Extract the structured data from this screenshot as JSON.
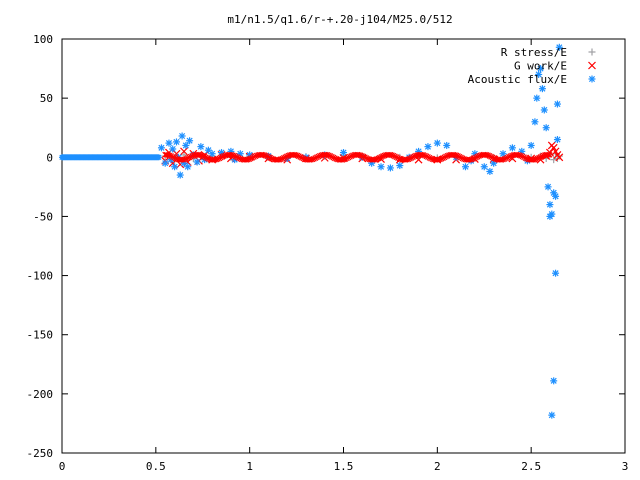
{
  "chart_data": {
    "type": "scatter",
    "title": "m1/n1.5/q1.6/r-+.20-j104/M25.0/512",
    "xlabel": "",
    "ylabel": "",
    "xlim": [
      0,
      3
    ],
    "ylim": [
      -250,
      100
    ],
    "xticks": [
      "0",
      "0.5",
      "1",
      "1.5",
      "2",
      "2.5",
      "3"
    ],
    "yticks": [
      "100",
      "50",
      "0",
      "-50",
      "-100",
      "-150",
      "-200",
      "-250"
    ],
    "legend_position": "top-right",
    "grid": false,
    "series": [
      {
        "name": "R stress/E",
        "marker": "plus",
        "color": "#a0a0a4",
        "points": [
          [
            0.55,
            1
          ],
          [
            0.6,
            -2
          ],
          [
            0.65,
            2
          ],
          [
            0.7,
            -1
          ],
          [
            0.8,
            1
          ],
          [
            0.9,
            0
          ],
          [
            1.0,
            0.5
          ],
          [
            1.1,
            0
          ],
          [
            1.2,
            -0.5
          ],
          [
            1.3,
            0.5
          ],
          [
            1.4,
            1
          ],
          [
            1.5,
            1.5
          ],
          [
            1.6,
            0.5
          ],
          [
            1.7,
            0
          ],
          [
            1.8,
            0
          ],
          [
            1.9,
            0.5
          ],
          [
            2.0,
            -0.5
          ],
          [
            2.1,
            0.5
          ],
          [
            2.2,
            0
          ],
          [
            2.3,
            -0.5
          ],
          [
            2.4,
            0.5
          ],
          [
            2.5,
            0
          ],
          [
            2.55,
            1
          ],
          [
            2.58,
            -1
          ],
          [
            2.6,
            2
          ],
          [
            2.62,
            -2
          ],
          [
            2.63,
            3
          ],
          [
            2.64,
            -1
          ],
          [
            2.65,
            1
          ]
        ]
      },
      {
        "name": "G work/E",
        "marker": "cross",
        "color": "#ff0000",
        "points": [
          [
            0.55,
            -3
          ],
          [
            0.57,
            4
          ],
          [
            0.59,
            -5
          ],
          [
            0.61,
            3
          ],
          [
            0.63,
            -6
          ],
          [
            0.65,
            5
          ],
          [
            0.67,
            -4
          ],
          [
            0.7,
            3
          ],
          [
            0.73,
            -3
          ],
          [
            0.76,
            2
          ],
          [
            0.8,
            -2
          ],
          [
            0.85,
            2
          ],
          [
            0.9,
            -1
          ],
          [
            1.0,
            0.5
          ],
          [
            1.1,
            -1
          ],
          [
            1.2,
            -2
          ],
          [
            1.3,
            -1
          ],
          [
            1.4,
            -0.5
          ],
          [
            1.5,
            -0.5
          ],
          [
            1.6,
            -1
          ],
          [
            1.7,
            -1.5
          ],
          [
            1.8,
            -2
          ],
          [
            1.9,
            -2
          ],
          [
            2.0,
            -2
          ],
          [
            2.1,
            -2
          ],
          [
            2.2,
            -1.5
          ],
          [
            2.3,
            -1.5
          ],
          [
            2.4,
            -1
          ],
          [
            2.5,
            -1
          ],
          [
            2.55,
            -2
          ],
          [
            2.58,
            1
          ],
          [
            2.6,
            4
          ],
          [
            2.61,
            10
          ],
          [
            2.62,
            8
          ],
          [
            2.63,
            5
          ],
          [
            2.64,
            2
          ],
          [
            2.65,
            0
          ]
        ]
      },
      {
        "name": "Acoustic flux/E",
        "marker": "star",
        "color": "#1e90ff",
        "points": [
          [
            0.53,
            8
          ],
          [
            0.55,
            -5
          ],
          [
            0.57,
            12
          ],
          [
            0.58,
            -2
          ],
          [
            0.59,
            7
          ],
          [
            0.6,
            -8
          ],
          [
            0.61,
            13
          ],
          [
            0.62,
            0
          ],
          [
            0.63,
            -15
          ],
          [
            0.64,
            18
          ],
          [
            0.65,
            -5
          ],
          [
            0.66,
            10
          ],
          [
            0.67,
            -8
          ],
          [
            0.68,
            14
          ],
          [
            0.7,
            2
          ],
          [
            0.72,
            -4
          ],
          [
            0.74,
            9
          ],
          [
            0.76,
            -2
          ],
          [
            0.78,
            6
          ],
          [
            0.8,
            3
          ],
          [
            0.85,
            4
          ],
          [
            0.9,
            5
          ],
          [
            0.92,
            -2
          ],
          [
            0.95,
            3
          ],
          [
            1.0,
            2
          ],
          [
            1.1,
            1
          ],
          [
            1.2,
            -1
          ],
          [
            1.3,
            0
          ],
          [
            1.4,
            2
          ],
          [
            1.5,
            4
          ],
          [
            1.6,
            0
          ],
          [
            1.65,
            -5
          ],
          [
            1.7,
            -8
          ],
          [
            1.75,
            -9
          ],
          [
            1.8,
            -7
          ],
          [
            1.85,
            0
          ],
          [
            1.9,
            5
          ],
          [
            1.95,
            9
          ],
          [
            2.0,
            12
          ],
          [
            2.05,
            10
          ],
          [
            2.1,
            0
          ],
          [
            2.15,
            -8
          ],
          [
            2.18,
            -3
          ],
          [
            2.2,
            3
          ],
          [
            2.25,
            -8
          ],
          [
            2.28,
            -12
          ],
          [
            2.3,
            -5
          ],
          [
            2.35,
            3
          ],
          [
            2.4,
            8
          ],
          [
            2.45,
            5
          ],
          [
            2.48,
            -3
          ],
          [
            2.5,
            10
          ],
          [
            2.52,
            30
          ],
          [
            2.53,
            50
          ],
          [
            2.54,
            70
          ],
          [
            2.55,
            75
          ],
          [
            2.56,
            58
          ],
          [
            2.57,
            40
          ],
          [
            2.58,
            25
          ],
          [
            2.59,
            -25
          ],
          [
            2.6,
            -40
          ],
          [
            2.6,
            -50
          ],
          [
            2.61,
            -48
          ],
          [
            2.61,
            -218
          ],
          [
            2.62,
            -189
          ],
          [
            2.62,
            -30
          ],
          [
            2.63,
            -98
          ],
          [
            2.63,
            -33
          ],
          [
            2.64,
            15
          ],
          [
            2.64,
            45
          ],
          [
            2.65,
            93
          ]
        ]
      }
    ]
  }
}
